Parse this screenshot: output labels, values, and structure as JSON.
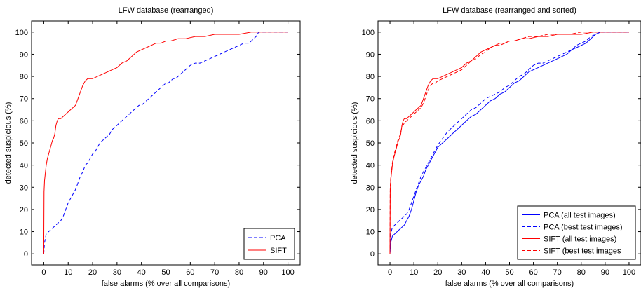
{
  "chart_data": [
    {
      "type": "line",
      "title": "LFW database (rearranged)",
      "xlabel": "false alarms (% over all comparisons)",
      "ylabel": "detected suspicious (%)",
      "xlim": [
        -5,
        105
      ],
      "ylim": [
        -5,
        105
      ],
      "xticks": [
        "0",
        "10",
        "20",
        "30",
        "40",
        "50",
        "60",
        "70",
        "80",
        "90",
        "100"
      ],
      "yticks": [
        "0",
        "10",
        "20",
        "30",
        "40",
        "50",
        "60",
        "70",
        "80",
        "90",
        "100"
      ],
      "grid": false,
      "legend_position": "bottom-right",
      "series": [
        {
          "name": "PCA",
          "color": "#0000ff",
          "dash": "dashed",
          "x": [
            0,
            0.3,
            1,
            2,
            3,
            4,
            5,
            6,
            7,
            8,
            9,
            10,
            11,
            12,
            13,
            14,
            15,
            16,
            17,
            18,
            19,
            20,
            21,
            22,
            23,
            24,
            25,
            26,
            27,
            28,
            29,
            30,
            31,
            32,
            33,
            34,
            35,
            36,
            37,
            38,
            39,
            40,
            41,
            42,
            43,
            44,
            45,
            46,
            47,
            48,
            49,
            50,
            51,
            52,
            53,
            54,
            55,
            56,
            57,
            58,
            59,
            60,
            62,
            64,
            66,
            68,
            70,
            72,
            74,
            76,
            78,
            80,
            82,
            84,
            85,
            86,
            87,
            88,
            90,
            92,
            95,
            100
          ],
          "y": [
            0,
            5,
            9,
            10,
            11,
            12,
            13,
            14,
            15,
            17,
            20,
            23,
            25,
            27,
            29,
            32,
            35,
            37,
            40,
            41,
            43,
            45,
            46,
            48,
            50,
            51,
            52,
            53,
            54,
            56,
            57,
            58,
            59,
            60,
            61,
            62,
            63,
            64,
            65,
            66,
            67,
            67,
            68,
            69,
            70,
            71,
            72,
            73,
            74,
            75,
            76,
            77,
            77,
            78,
            79,
            79,
            80,
            81,
            82,
            83,
            84,
            85,
            86,
            86,
            87,
            88,
            89,
            90,
            91,
            92,
            93,
            94,
            95,
            95,
            96,
            97,
            98,
            100,
            100,
            100,
            100,
            100
          ]
        },
        {
          "name": "SIFT",
          "color": "#ff0000",
          "dash": "solid",
          "x": [
            0,
            0.1,
            0.3,
            0.6,
            1,
            1.5,
            2,
            2.5,
            3,
            3.5,
            4,
            4.5,
            5,
            5.5,
            6,
            7,
            8,
            9,
            10,
            11,
            12,
            13,
            14,
            15,
            16,
            17,
            18,
            19,
            20,
            22,
            24,
            26,
            28,
            30,
            32,
            34,
            36,
            38,
            40,
            42,
            44,
            46,
            48,
            50,
            52,
            55,
            58,
            62,
            66,
            70,
            75,
            80,
            85,
            90,
            100
          ],
          "y": [
            0,
            28,
            33,
            36,
            40,
            43,
            45,
            47,
            49,
            51,
            52,
            54,
            58,
            60,
            61,
            61,
            62,
            63,
            64,
            65,
            66,
            67,
            70,
            73,
            76,
            78,
            79,
            79,
            79,
            80,
            81,
            82,
            83,
            84,
            86,
            87,
            89,
            91,
            92,
            93,
            94,
            95,
            95,
            96,
            96,
            97,
            97,
            98,
            98,
            99,
            99,
            99,
            100,
            100,
            100
          ]
        }
      ]
    },
    {
      "type": "line",
      "title": "LFW database (rearranged and sorted)",
      "xlabel": "false alarms (% over all comparisons)",
      "ylabel": "detected suspicious (%)",
      "xlim": [
        -5,
        105
      ],
      "ylim": [
        -5,
        105
      ],
      "xticks": [
        "0",
        "10",
        "20",
        "30",
        "40",
        "50",
        "60",
        "70",
        "80",
        "90",
        "100"
      ],
      "yticks": [
        "0",
        "10",
        "20",
        "30",
        "40",
        "50",
        "60",
        "70",
        "80",
        "90",
        "100"
      ],
      "grid": false,
      "legend_position": "bottom-right",
      "series": [
        {
          "name": "PCA (all test images)",
          "color": "#0000ff",
          "dash": "solid",
          "x": [
            0,
            0.3,
            1,
            2,
            3,
            4,
            5,
            6,
            7,
            8,
            9,
            10,
            11,
            12,
            13,
            14,
            15,
            16,
            17,
            18,
            19,
            20,
            22,
            24,
            26,
            28,
            30,
            32,
            34,
            36,
            38,
            40,
            42,
            44,
            46,
            48,
            50,
            52,
            54,
            56,
            58,
            60,
            62,
            64,
            66,
            68,
            70,
            72,
            74,
            76,
            78,
            80,
            82,
            84,
            85,
            86,
            88,
            90,
            100
          ],
          "y": [
            0,
            5,
            8,
            9,
            10,
            11,
            12,
            13,
            15,
            17,
            20,
            24,
            28,
            31,
            33,
            35,
            38,
            40,
            42,
            44,
            46,
            48,
            50,
            52,
            54,
            56,
            58,
            60,
            62,
            63,
            65,
            67,
            69,
            70,
            72,
            73,
            75,
            77,
            78,
            80,
            82,
            83,
            84,
            85,
            86,
            87,
            88,
            89,
            90,
            92,
            93,
            94,
            95,
            97,
            98,
            99,
            100,
            100,
            100
          ]
        },
        {
          "name": "PCA (best test images)",
          "color": "#0000ff",
          "dash": "dashed",
          "x": [
            0,
            0.3,
            1,
            2,
            3,
            4,
            5,
            6,
            7,
            8,
            9,
            10,
            11,
            12,
            13,
            14,
            15,
            16,
            17,
            18,
            19,
            20,
            22,
            24,
            26,
            28,
            30,
            32,
            34,
            36,
            38,
            40,
            42,
            44,
            46,
            48,
            50,
            52,
            54,
            56,
            58,
            60,
            62,
            64,
            66,
            68,
            70,
            72,
            74,
            76,
            78,
            80,
            82,
            84,
            86,
            88,
            90,
            100
          ],
          "y": [
            0,
            9,
            12,
            13,
            14,
            15,
            16,
            17,
            18,
            20,
            23,
            26,
            29,
            32,
            35,
            37,
            39,
            41,
            43,
            45,
            47,
            49,
            52,
            55,
            57,
            59,
            61,
            63,
            65,
            66,
            68,
            70,
            71,
            72,
            73,
            75,
            76,
            78,
            80,
            81,
            83,
            85,
            86,
            86,
            87,
            88,
            89,
            90,
            91,
            92,
            94,
            95,
            96,
            98,
            99,
            100,
            100,
            100
          ]
        },
        {
          "name": "SIFT (all test images)",
          "color": "#ff0000",
          "dash": "solid",
          "x": [
            0,
            0.1,
            0.3,
            0.6,
            1,
            1.5,
            2,
            2.5,
            3,
            3.5,
            4,
            4.5,
            5,
            5.5,
            6,
            7,
            8,
            9,
            10,
            11,
            12,
            13,
            14,
            15,
            16,
            17,
            18,
            19,
            20,
            22,
            24,
            26,
            28,
            30,
            32,
            34,
            36,
            38,
            40,
            42,
            44,
            46,
            48,
            50,
            52,
            55,
            58,
            62,
            66,
            70,
            75,
            80,
            85,
            90,
            100
          ],
          "y": [
            0,
            28,
            33,
            36,
            40,
            43,
            45,
            47,
            49,
            51,
            52,
            54,
            58,
            60,
            61,
            61,
            62,
            63,
            64,
            65,
            66,
            67,
            70,
            73,
            76,
            78,
            79,
            79,
            79,
            80,
            81,
            82,
            83,
            84,
            86,
            87,
            89,
            91,
            92,
            93,
            94,
            95,
            95,
            96,
            96,
            97,
            97,
            98,
            98,
            99,
            99,
            99,
            100,
            100,
            100
          ]
        },
        {
          "name": "SIFT (best test images",
          "color": "#ff0000",
          "dash": "dashed",
          "x": [
            0,
            0.1,
            0.3,
            0.6,
            1,
            1.5,
            2,
            2.5,
            3,
            3.5,
            4,
            4.5,
            5,
            5.5,
            6,
            7,
            8,
            9,
            10,
            11,
            12,
            13,
            14,
            15,
            16,
            17,
            18,
            19,
            20,
            22,
            24,
            26,
            28,
            30,
            32,
            34,
            36,
            38,
            40,
            42,
            44,
            46,
            48,
            50,
            52,
            55,
            58,
            62,
            66,
            70,
            75,
            80,
            85,
            90,
            100
          ],
          "y": [
            0,
            30,
            34,
            37,
            41,
            44,
            46,
            48,
            50,
            52,
            53,
            55,
            57,
            58,
            59,
            60,
            61,
            62,
            63,
            64,
            65,
            66,
            68,
            71,
            74,
            76,
            77,
            77,
            78,
            79,
            80,
            81,
            82,
            83,
            85,
            87,
            88,
            90,
            91,
            93,
            94,
            94,
            95,
            96,
            96,
            97,
            98,
            98,
            99,
            99,
            99,
            100,
            100,
            100,
            100
          ]
        }
      ]
    }
  ]
}
